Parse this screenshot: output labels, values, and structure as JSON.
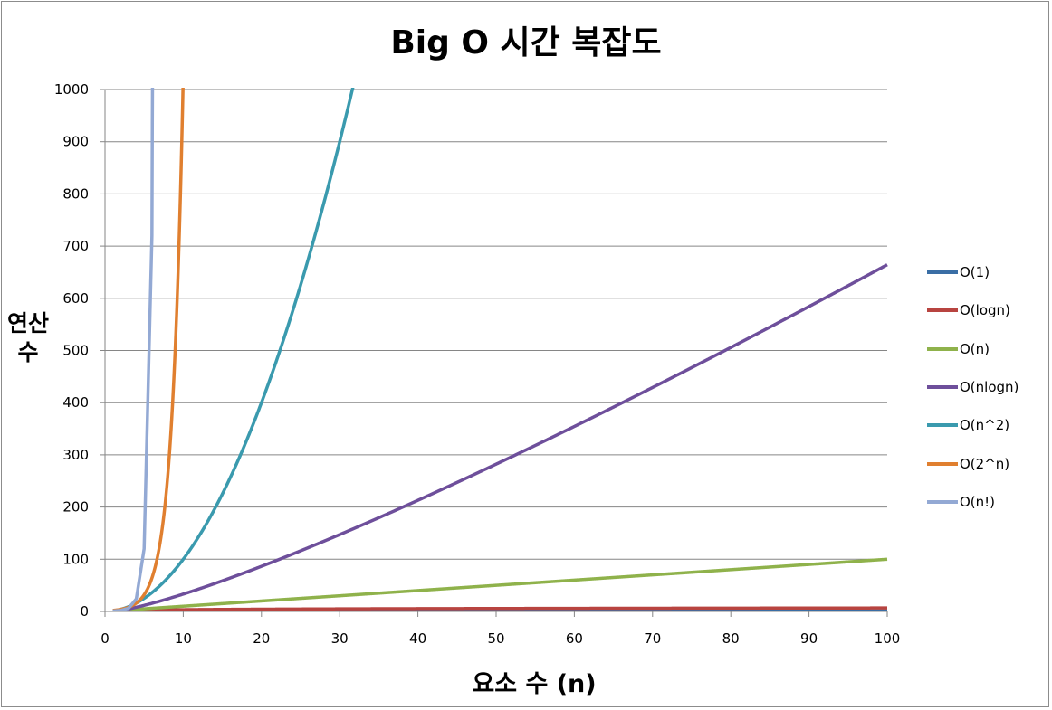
{
  "chart_data": {
    "type": "line",
    "title": "Big O 시간 복잡도",
    "xlabel": "요소 수 (n)",
    "ylabel": "연산\n수",
    "xlim": [
      0,
      100
    ],
    "ylim": [
      0,
      1000
    ],
    "x_ticks": [
      0,
      10,
      20,
      30,
      40,
      50,
      60,
      70,
      80,
      90,
      100
    ],
    "y_ticks": [
      0,
      100,
      200,
      300,
      400,
      500,
      600,
      700,
      800,
      900,
      1000
    ],
    "grid": "horizontal",
    "legend_position": "right",
    "series": [
      {
        "name": "O(1)",
        "color": "#3a6ea5",
        "formula": "1",
        "points": [
          [
            1,
            1
          ],
          [
            100,
            1
          ]
        ]
      },
      {
        "name": "O(logn)",
        "color": "#b84440",
        "formula": "log2(n)",
        "points": [
          [
            1,
            0
          ],
          [
            10,
            3.3
          ],
          [
            50,
            5.6
          ],
          [
            100,
            6.6
          ]
        ]
      },
      {
        "name": "O(n)",
        "color": "#8fb24b",
        "formula": "n",
        "points": [
          [
            1,
            1
          ],
          [
            50,
            50
          ],
          [
            100,
            100
          ]
        ]
      },
      {
        "name": "O(nlogn)",
        "color": "#6e4f9b",
        "formula": "n*log2(n)",
        "points": [
          [
            1,
            0
          ],
          [
            10,
            33
          ],
          [
            20,
            86
          ],
          [
            50,
            282
          ],
          [
            80,
            506
          ],
          [
            100,
            664
          ]
        ]
      },
      {
        "name": "O(n^2)",
        "color": "#3a9aae",
        "formula": "n^2",
        "points": [
          [
            1,
            1
          ],
          [
            10,
            100
          ],
          [
            20,
            400
          ],
          [
            30,
            900
          ],
          [
            31.6,
            1000
          ]
        ]
      },
      {
        "name": "O(2^n)",
        "color": "#e07f2f",
        "formula": "2^n",
        "points": [
          [
            1,
            2
          ],
          [
            5,
            32
          ],
          [
            8,
            256
          ],
          [
            9,
            512
          ],
          [
            10,
            1000
          ]
        ]
      },
      {
        "name": "O(n!)",
        "color": "#93a9d4",
        "formula": "n!",
        "points": [
          [
            1,
            1
          ],
          [
            3,
            6
          ],
          [
            4,
            24
          ],
          [
            5,
            120
          ],
          [
            6,
            720
          ],
          [
            6.1,
            1000
          ]
        ]
      }
    ]
  }
}
